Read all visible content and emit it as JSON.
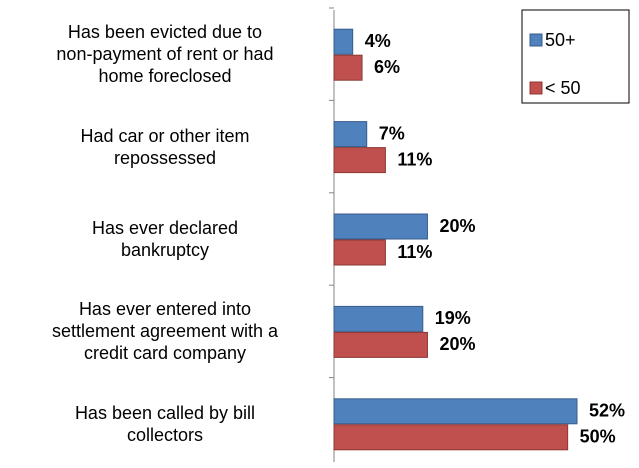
{
  "chart_data": {
    "type": "bar",
    "orientation": "horizontal",
    "categories": [
      "Has been evicted due to\nnon-payment of rent or had\nhome foreclosed",
      "Had car or other item\nrepossessed",
      "Has ever declared\nbankruptcy",
      "Has ever entered into\nsettlement agreement with a\ncredit card company",
      "Has been called by bill\ncollectors"
    ],
    "series": [
      {
        "name": "50+",
        "color": "#4f81bd",
        "values": [
          4,
          7,
          20,
          19,
          52
        ],
        "value_labels": [
          "4%",
          "7%",
          "20%",
          "19%",
          "52%"
        ]
      },
      {
        "name": "< 50",
        "color": "#c0504d",
        "values": [
          6,
          11,
          11,
          20,
          50
        ],
        "value_labels": [
          "6%",
          "11%",
          "11%",
          "20%",
          "50%"
        ]
      }
    ],
    "legend": "top-right"
  }
}
